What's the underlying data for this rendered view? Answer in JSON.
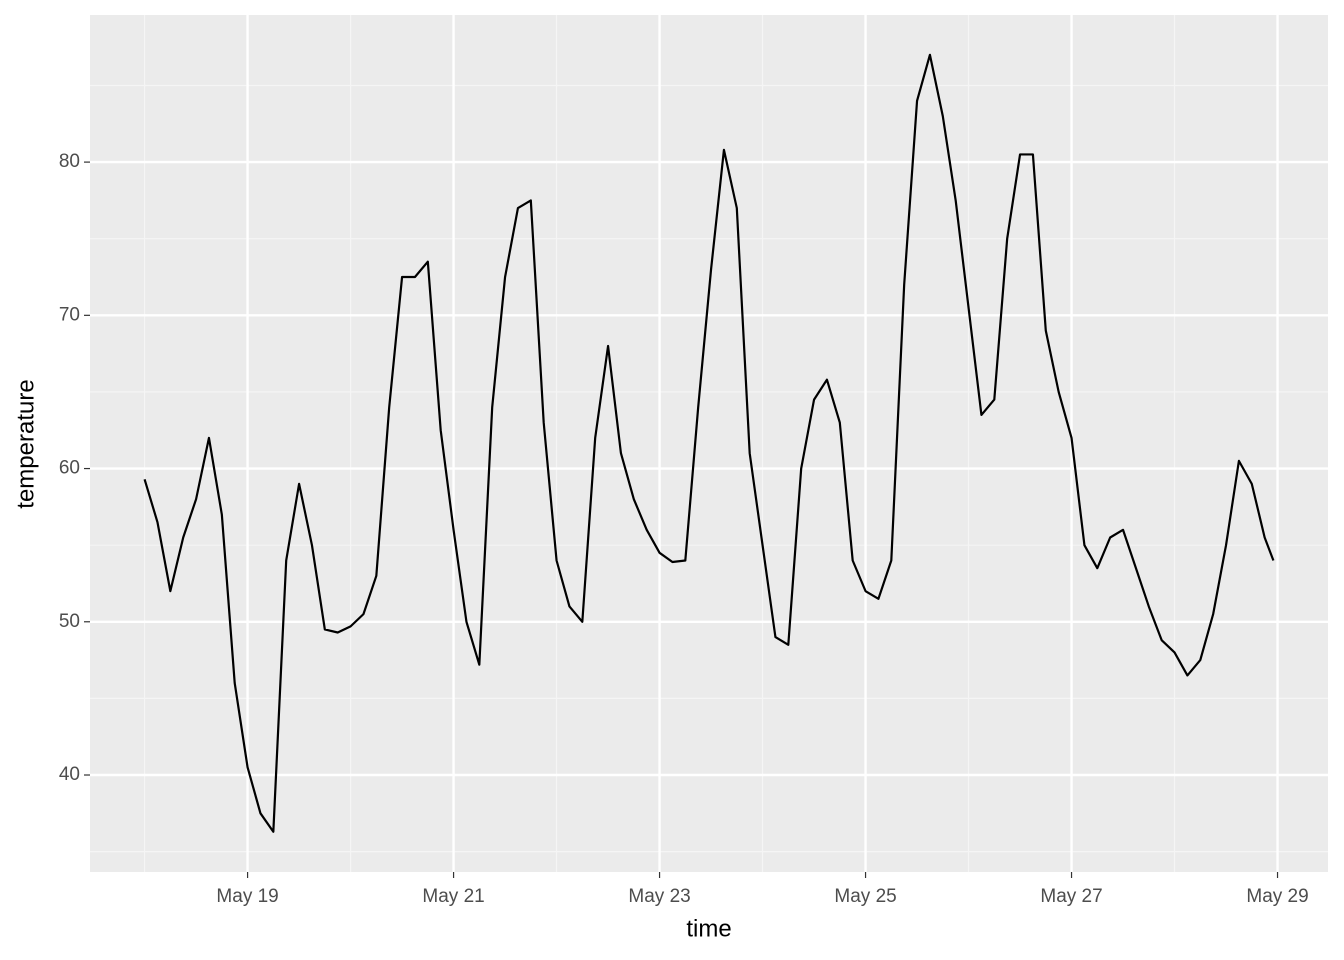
{
  "chart_data": {
    "type": "line",
    "x_label": "time",
    "y_label": "temperature",
    "x": [
      18,
      18.125,
      18.25,
      18.375,
      18.5,
      18.625,
      18.75,
      18.875,
      19,
      19.125,
      19.25,
      19.375,
      19.5,
      19.625,
      19.75,
      19.875,
      20,
      20.125,
      20.25,
      20.375,
      20.5,
      20.625,
      20.75,
      20.875,
      21,
      21.125,
      21.25,
      21.375,
      21.5,
      21.625,
      21.75,
      21.875,
      22,
      22.125,
      22.25,
      22.375,
      22.5,
      22.625,
      22.75,
      22.875,
      23,
      23.125,
      23.25,
      23.375,
      23.5,
      23.625,
      23.75,
      23.875,
      24,
      24.125,
      24.25,
      24.375,
      24.5,
      24.625,
      24.75,
      24.875,
      25,
      25.125,
      25.25,
      25.375,
      25.5,
      25.625,
      25.75,
      25.875,
      26,
      26.125,
      26.25,
      26.375,
      26.5,
      26.625,
      26.75,
      26.875,
      27,
      27.125,
      27.25,
      27.375,
      27.5,
      27.625,
      27.75,
      27.875,
      28,
      28.125,
      28.25,
      28.375,
      28.5,
      28.625,
      28.75,
      28.875,
      28.96
    ],
    "values": [
      59.3,
      56.5,
      52.0,
      55.5,
      58.0,
      62.0,
      57.0,
      46.0,
      40.5,
      37.5,
      36.3,
      54.0,
      59.0,
      55.0,
      49.5,
      49.3,
      49.7,
      50.5,
      53.0,
      64.0,
      72.5,
      72.5,
      73.5,
      62.5,
      56.0,
      50.0,
      47.2,
      64.0,
      72.5,
      77.0,
      77.5,
      63.0,
      54.0,
      51.0,
      50.0,
      62.0,
      68.0,
      61.0,
      58.0,
      56.0,
      54.5,
      53.9,
      54.0,
      64.0,
      73.0,
      80.8,
      77.0,
      61.0,
      55.0,
      49.0,
      48.5,
      60.0,
      64.5,
      65.8,
      63.0,
      54.0,
      52.0,
      51.5,
      54.0,
      72.0,
      84.0,
      87.0,
      83.0,
      77.5,
      70.5,
      63.5,
      64.5,
      75.0,
      80.5,
      80.5,
      69.0,
      65.0,
      62.0,
      55.0,
      53.5,
      55.5,
      56.0,
      53.5,
      51.0,
      48.8,
      48.0,
      46.5,
      47.5,
      50.5,
      55.0,
      60.5,
      59.0,
      55.5,
      54.0
    ],
    "color": "#000000",
    "xlim": [
      17.47,
      29.49
    ],
    "xticks": [
      {
        "value": 19,
        "label": "May 19"
      },
      {
        "value": 21,
        "label": "May 21"
      },
      {
        "value": 23,
        "label": "May 23"
      },
      {
        "value": 25,
        "label": "May 25"
      },
      {
        "value": 27,
        "label": "May 27"
      },
      {
        "value": 29,
        "label": "May 29"
      }
    ],
    "ylim": [
      33.67,
      89.6
    ],
    "yticks": [
      40,
      50,
      60,
      70,
      80
    ],
    "grid": true
  }
}
